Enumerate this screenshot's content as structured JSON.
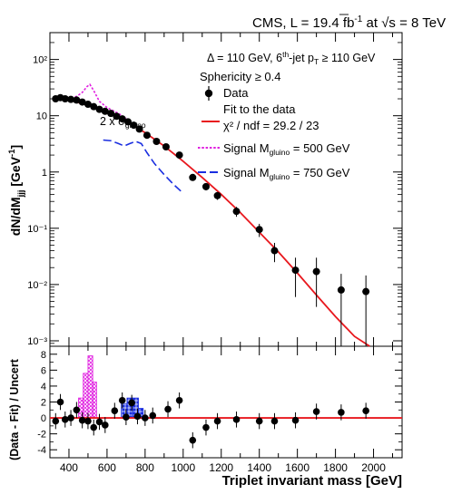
{
  "header": {
    "cms": "CMS, L = 19.4 fb",
    "lumi_sup": "-1",
    "at": " at ",
    "sqrt_s": "s",
    "energy": " =  8 TeV"
  },
  "selection": {
    "delta_line": "Δ = 110 GeV, 6",
    "delta_sup": "th",
    "delta_mid": "-jet p",
    "delta_sub": "T",
    "delta_end": " ≥ 110 GeV",
    "sphericity": "Sphericity ≥ 0.4"
  },
  "annotation": {
    "times": "2 x σ",
    "sub": "gluino"
  },
  "legend": {
    "data": "Data",
    "fit_line1": "Fit to the data",
    "fit_line2": "χ² / ndf = 29.2 / 23",
    "sig500_a": "Signal M",
    "sig500_sub": "gluino",
    "sig500_b": " = 500 GeV",
    "sig750_a": "Signal M",
    "sig750_sub": "gluino",
    "sig750_b": " = 750 GeV"
  },
  "axes": {
    "ylabel_top_a": "dN/dM",
    "ylabel_top_sub": "jjj",
    "ylabel_top_b": " [GeV",
    "ylabel_top_sup": "-1",
    "ylabel_top_c": "]",
    "ylabel_bottom": "(Data - Fit) / Uncert",
    "xlabel": "Triplet invariant mass [GeV]"
  },
  "colors": {
    "data": "#000000",
    "fit": "#e8181e",
    "signal500": "#e020e0",
    "signal750": "#1a2ee0"
  },
  "chart_data": [
    {
      "type": "scatter",
      "role": "spectrum",
      "xlim": [
        300,
        2150
      ],
      "ylim": [
        0.0008,
        300
      ],
      "yscale": "log",
      "xticks": [
        400,
        600,
        800,
        1000,
        1200,
        1400,
        1600,
        1800,
        2000
      ],
      "ytick_labels": [
        "10⁻³",
        "10⁻²",
        "10⁻¹",
        "1",
        "10",
        "10²"
      ],
      "data": [
        {
          "x": 330,
          "y": 20,
          "err": 1.5
        },
        {
          "x": 355,
          "y": 21,
          "err": 1.5
        },
        {
          "x": 380,
          "y": 20,
          "err": 1.4
        },
        {
          "x": 410,
          "y": 19.5,
          "err": 1.3
        },
        {
          "x": 440,
          "y": 19,
          "err": 1.2
        },
        {
          "x": 470,
          "y": 17.5,
          "err": 1.1
        },
        {
          "x": 500,
          "y": 16,
          "err": 1.0
        },
        {
          "x": 530,
          "y": 14.5,
          "err": 0.9
        },
        {
          "x": 560,
          "y": 13,
          "err": 0.8
        },
        {
          "x": 590,
          "y": 12,
          "err": 0.8
        },
        {
          "x": 620,
          "y": 11,
          "err": 0.7
        },
        {
          "x": 650,
          "y": 9.8,
          "err": 0.6
        },
        {
          "x": 680,
          "y": 8.8,
          "err": 0.6
        },
        {
          "x": 710,
          "y": 7.8,
          "err": 0.5
        },
        {
          "x": 740,
          "y": 6.8,
          "err": 0.45
        },
        {
          "x": 770,
          "y": 5.8,
          "err": 0.4
        },
        {
          "x": 810,
          "y": 4.5,
          "err": 0.35
        },
        {
          "x": 860,
          "y": 3.5,
          "err": 0.3
        },
        {
          "x": 910,
          "y": 2.8,
          "err": 0.25
        },
        {
          "x": 980,
          "y": 2.0,
          "err": 0.2
        },
        {
          "x": 1050,
          "y": 0.8,
          "err": 0.1
        },
        {
          "x": 1120,
          "y": 0.55,
          "err": 0.08
        },
        {
          "x": 1180,
          "y": 0.38,
          "err": 0.06
        },
        {
          "x": 1280,
          "y": 0.2,
          "err": 0.04
        },
        {
          "x": 1400,
          "y": 0.095,
          "err": 0.025
        },
        {
          "x": 1480,
          "y": 0.04,
          "err": 0.015
        },
        {
          "x": 1590,
          "y": 0.018,
          "err": 0.012
        },
        {
          "x": 1700,
          "y": 0.017,
          "err": 0.013
        },
        {
          "x": 1830,
          "y": 0.008,
          "err": 0.0075
        },
        {
          "x": 1960,
          "y": 0.0075,
          "err": 0.007
        }
      ],
      "fit": [
        {
          "x": 320,
          "y": 20
        },
        {
          "x": 400,
          "y": 19
        },
        {
          "x": 500,
          "y": 15.5
        },
        {
          "x": 600,
          "y": 11.5
        },
        {
          "x": 700,
          "y": 8
        },
        {
          "x": 800,
          "y": 5
        },
        {
          "x": 900,
          "y": 2.9
        },
        {
          "x": 1000,
          "y": 1.55
        },
        {
          "x": 1100,
          "y": 0.8
        },
        {
          "x": 1200,
          "y": 0.4
        },
        {
          "x": 1300,
          "y": 0.19
        },
        {
          "x": 1400,
          "y": 0.085
        },
        {
          "x": 1500,
          "y": 0.038
        },
        {
          "x": 1600,
          "y": 0.016
        },
        {
          "x": 1700,
          "y": 0.0065
        },
        {
          "x": 1800,
          "y": 0.0027
        },
        {
          "x": 1900,
          "y": 0.0012
        },
        {
          "x": 1980,
          "y": 0.0008
        }
      ],
      "signal500": [
        {
          "x": 330,
          "y": 20
        },
        {
          "x": 400,
          "y": 20.5
        },
        {
          "x": 440,
          "y": 22
        },
        {
          "x": 470,
          "y": 26
        },
        {
          "x": 495,
          "y": 33
        },
        {
          "x": 510,
          "y": 36
        },
        {
          "x": 530,
          "y": 28
        },
        {
          "x": 560,
          "y": 18
        },
        {
          "x": 600,
          "y": 14
        },
        {
          "x": 660,
          "y": 11
        },
        {
          "x": 700,
          "y": 9
        }
      ],
      "signal750": [
        {
          "x": 580,
          "y": 3.7
        },
        {
          "x": 620,
          "y": 3.6
        },
        {
          "x": 660,
          "y": 3.2
        },
        {
          "x": 690,
          "y": 2.9
        },
        {
          "x": 720,
          "y": 3.2
        },
        {
          "x": 750,
          "y": 3.5
        },
        {
          "x": 780,
          "y": 3.2
        },
        {
          "x": 810,
          "y": 2.2
        },
        {
          "x": 850,
          "y": 1.4
        },
        {
          "x": 900,
          "y": 0.9
        },
        {
          "x": 950,
          "y": 0.6
        },
        {
          "x": 990,
          "y": 0.45
        }
      ]
    },
    {
      "type": "bar",
      "role": "residuals",
      "xlim": [
        300,
        2150
      ],
      "ylim": [
        -5,
        9
      ],
      "yticks": [
        -4,
        -2,
        0,
        2,
        4,
        6,
        8
      ],
      "xtick_labels": [
        "400",
        "600",
        "800",
        "1000",
        "1200",
        "1400",
        "1600",
        "1800",
        "2000"
      ],
      "points": [
        {
          "x": 330,
          "y": -0.4
        },
        {
          "x": 355,
          "y": 2.0
        },
        {
          "x": 380,
          "y": -0.2
        },
        {
          "x": 410,
          "y": 0.0
        },
        {
          "x": 440,
          "y": 1.0
        },
        {
          "x": 470,
          "y": -0.3
        },
        {
          "x": 500,
          "y": -0.4
        },
        {
          "x": 530,
          "y": -1.2
        },
        {
          "x": 560,
          "y": -0.5
        },
        {
          "x": 590,
          "y": -0.9
        },
        {
          "x": 640,
          "y": 0.9
        },
        {
          "x": 680,
          "y": 2.2
        },
        {
          "x": 700,
          "y": 0.1
        },
        {
          "x": 730,
          "y": 1.9
        },
        {
          "x": 760,
          "y": 0.2
        },
        {
          "x": 800,
          "y": 0.0
        },
        {
          "x": 840,
          "y": 0.3
        },
        {
          "x": 920,
          "y": 1.1
        },
        {
          "x": 980,
          "y": 2.2
        },
        {
          "x": 1050,
          "y": -2.8
        },
        {
          "x": 1120,
          "y": -1.2
        },
        {
          "x": 1180,
          "y": -0.4
        },
        {
          "x": 1280,
          "y": -0.2
        },
        {
          "x": 1400,
          "y": -0.4
        },
        {
          "x": 1480,
          "y": -0.4
        },
        {
          "x": 1590,
          "y": -0.3
        },
        {
          "x": 1700,
          "y": 0.8
        },
        {
          "x": 1830,
          "y": 0.7
        },
        {
          "x": 1960,
          "y": 0.9
        }
      ],
      "signal500_bins": [
        {
          "x0": 450,
          "x1": 475,
          "y": 2.5
        },
        {
          "x0": 475,
          "x1": 500,
          "y": 5.6
        },
        {
          "x0": 500,
          "x1": 525,
          "y": 7.8
        },
        {
          "x0": 525,
          "x1": 545,
          "y": 4.5
        }
      ],
      "signal750_bins": [
        {
          "x0": 675,
          "x1": 705,
          "y": 1.8
        },
        {
          "x0": 705,
          "x1": 735,
          "y": 2.5
        },
        {
          "x0": 735,
          "x1": 765,
          "y": 2.5
        },
        {
          "x0": 765,
          "x1": 790,
          "y": 1.2
        }
      ]
    }
  ]
}
